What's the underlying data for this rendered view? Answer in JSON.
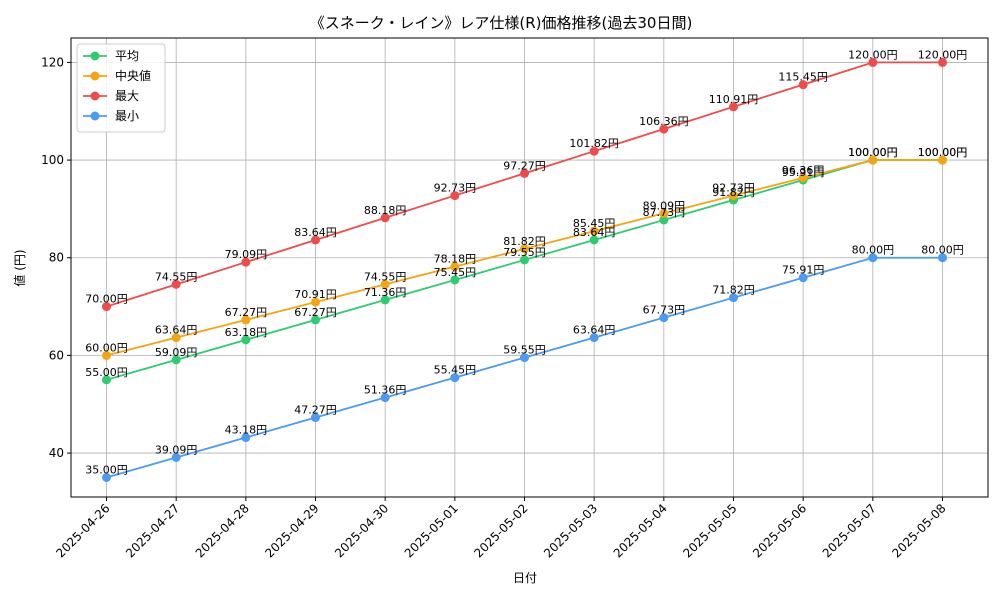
{
  "chart_data": {
    "type": "line",
    "title": "《スネーク・レイン》レア仕様(R)価格推移(過去30日間)",
    "xlabel": "日付",
    "ylabel": "値 (円)",
    "ylim": [
      31,
      125
    ],
    "yticks": [
      40,
      60,
      80,
      100,
      120
    ],
    "grid": true,
    "legend_position": "top-left",
    "value_suffix": "円",
    "x": [
      "2025-04-26",
      "2025-04-27",
      "2025-04-28",
      "2025-04-29",
      "2025-04-30",
      "2025-05-01",
      "2025-05-02",
      "2025-05-03",
      "2025-05-04",
      "2025-05-05",
      "2025-05-06",
      "2025-05-07",
      "2025-05-08"
    ],
    "series": [
      {
        "name": "平均",
        "color": "#2ecc71",
        "values": [
          55.0,
          59.09,
          63.18,
          67.27,
          71.36,
          75.45,
          79.55,
          83.64,
          87.73,
          91.82,
          95.91,
          100.0,
          100.0
        ]
      },
      {
        "name": "中央値",
        "color": "#f5a511",
        "values": [
          60.0,
          63.64,
          67.27,
          70.91,
          74.55,
          78.18,
          81.82,
          85.45,
          89.09,
          92.73,
          96.36,
          100.0,
          100.0
        ]
      },
      {
        "name": "最大",
        "color": "#ef4b4b",
        "values": [
          70.0,
          74.55,
          79.09,
          83.64,
          88.18,
          92.73,
          97.27,
          101.82,
          106.36,
          110.91,
          115.45,
          120.0,
          120.0
        ]
      },
      {
        "name": "最小",
        "color": "#4b9bf5",
        "values": [
          35.0,
          39.09,
          43.18,
          47.27,
          51.36,
          55.45,
          59.55,
          63.64,
          67.73,
          71.82,
          75.91,
          80.0,
          80.0
        ]
      }
    ]
  }
}
